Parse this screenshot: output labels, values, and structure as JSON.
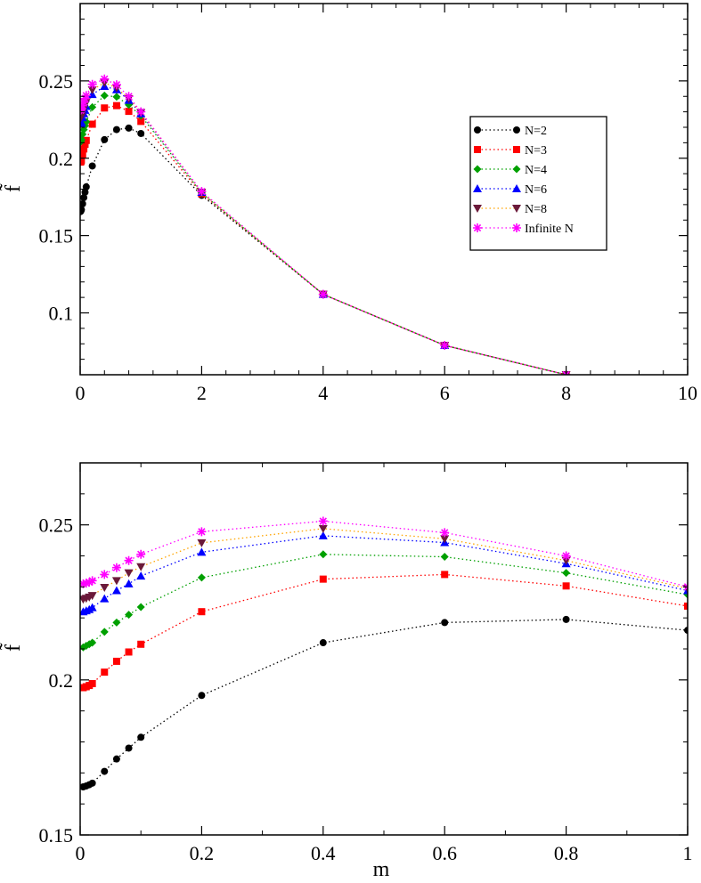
{
  "colors": {
    "N=2": "#000000",
    "N=3": "#ff0000",
    "N=4": "#00a000",
    "N=6": "#0000ff",
    "N=8": "#6b1a3a",
    "Infinite N": "#ff00ff",
    "N=8_line": "#ffa500"
  },
  "chart_data": [
    {
      "type": "line",
      "name": "top-panel",
      "title": "",
      "xlabel": "",
      "ylabel": "f̃",
      "xlim": [
        0,
        10
      ],
      "ylim": [
        0.06,
        0.3
      ],
      "xticks": [
        0,
        2,
        4,
        6,
        8,
        10
      ],
      "xtick_labels": [
        "0",
        "2",
        "4",
        "6",
        "8",
        "10"
      ],
      "yticks": [
        0.1,
        0.15,
        0.2,
        0.25
      ],
      "ytick_labels": [
        "0.1",
        "0.15",
        "0.2",
        "0.25"
      ],
      "legend": {
        "placement": "upper-right",
        "entries": [
          "N=2",
          "N=3",
          "N=4",
          "N=6",
          "N=8",
          "Infinite N"
        ]
      },
      "series": [
        {
          "name": "N=2",
          "marker": "circle",
          "x": [
            0.005,
            0.01,
            0.015,
            0.02,
            0.04,
            0.06,
            0.08,
            0.1,
            0.2,
            0.4,
            0.6,
            0.8,
            1,
            2,
            4,
            6,
            8
          ],
          "y": [
            0.1655,
            0.1658,
            0.1662,
            0.1667,
            0.1705,
            0.1745,
            0.178,
            0.1815,
            0.195,
            0.212,
            0.2185,
            0.2195,
            0.216,
            0.176,
            0.112,
            0.079,
            0.06
          ]
        },
        {
          "name": "N=3",
          "marker": "square",
          "x": [
            0.005,
            0.01,
            0.015,
            0.02,
            0.04,
            0.06,
            0.08,
            0.1,
            0.2,
            0.4,
            0.6,
            0.8,
            1,
            2,
            4,
            6,
            8
          ],
          "y": [
            0.1975,
            0.1978,
            0.1982,
            0.1988,
            0.2025,
            0.206,
            0.209,
            0.2115,
            0.222,
            0.2325,
            0.234,
            0.2303,
            0.2238,
            0.177,
            0.112,
            0.079,
            0.06
          ]
        },
        {
          "name": "N=4",
          "marker": "diamond",
          "x": [
            0.005,
            0.01,
            0.015,
            0.02,
            0.04,
            0.06,
            0.08,
            0.1,
            0.2,
            0.4,
            0.6,
            0.8,
            1,
            2,
            4,
            6,
            8
          ],
          "y": [
            0.2105,
            0.211,
            0.2115,
            0.212,
            0.2155,
            0.2185,
            0.221,
            0.2235,
            0.233,
            0.2405,
            0.2397,
            0.2345,
            0.2275,
            0.1775,
            0.112,
            0.079,
            0.06
          ]
        },
        {
          "name": "N=6",
          "marker": "triangle-up",
          "x": [
            0.005,
            0.01,
            0.015,
            0.02,
            0.04,
            0.06,
            0.08,
            0.1,
            0.2,
            0.4,
            0.6,
            0.8,
            1,
            2,
            4,
            6,
            8
          ],
          "y": [
            0.222,
            0.2223,
            0.2227,
            0.2233,
            0.2262,
            0.2288,
            0.231,
            0.2335,
            0.2412,
            0.2465,
            0.2443,
            0.2375,
            0.2288,
            0.178,
            0.112,
            0.079,
            0.06
          ]
        },
        {
          "name": "N=8",
          "marker": "triangle-down",
          "x": [
            0.005,
            0.01,
            0.015,
            0.02,
            0.04,
            0.06,
            0.08,
            0.1,
            0.2,
            0.4,
            0.6,
            0.8,
            1,
            2,
            4,
            6,
            8
          ],
          "y": [
            0.226,
            0.2263,
            0.2267,
            0.2272,
            0.2298,
            0.232,
            0.2345,
            0.2365,
            0.2442,
            0.2488,
            0.2455,
            0.2385,
            0.2295,
            0.178,
            0.112,
            0.079,
            0.06
          ]
        },
        {
          "name": "Infinite N",
          "marker": "asterisk",
          "x": [
            0.005,
            0.01,
            0.015,
            0.02,
            0.04,
            0.06,
            0.08,
            0.1,
            0.2,
            0.4,
            0.6,
            0.8,
            1,
            2,
            4,
            6,
            8
          ],
          "y": [
            0.231,
            0.2312,
            0.2315,
            0.232,
            0.234,
            0.2362,
            0.2385,
            0.2405,
            0.2478,
            0.2512,
            0.2475,
            0.24,
            0.23,
            0.1785,
            0.112,
            0.079,
            0.06
          ]
        }
      ]
    },
    {
      "type": "line",
      "name": "bottom-panel",
      "title": "",
      "xlabel": "m",
      "ylabel": "f̃",
      "xlim": [
        0,
        1
      ],
      "ylim": [
        0.15,
        0.27
      ],
      "xticks": [
        0,
        0.2,
        0.4,
        0.6,
        0.8,
        1
      ],
      "xtick_labels": [
        "0",
        "0.2",
        "0.4",
        "0.6",
        "0.8",
        "1"
      ],
      "yticks": [
        0.15,
        0.2,
        0.25
      ],
      "ytick_labels": [
        "0.15",
        "0.2",
        "0.25"
      ],
      "series": [
        {
          "name": "N=2",
          "marker": "circle",
          "x": [
            0.005,
            0.01,
            0.015,
            0.02,
            0.04,
            0.06,
            0.08,
            0.1,
            0.2,
            0.4,
            0.6,
            0.8,
            1
          ],
          "y": [
            0.1655,
            0.1658,
            0.1662,
            0.1667,
            0.1705,
            0.1745,
            0.178,
            0.1815,
            0.195,
            0.212,
            0.2185,
            0.2195,
            0.216
          ]
        },
        {
          "name": "N=3",
          "marker": "square",
          "x": [
            0.005,
            0.01,
            0.015,
            0.02,
            0.04,
            0.06,
            0.08,
            0.1,
            0.2,
            0.4,
            0.6,
            0.8,
            1
          ],
          "y": [
            0.1975,
            0.1978,
            0.1982,
            0.1988,
            0.2025,
            0.206,
            0.209,
            0.2115,
            0.222,
            0.2325,
            0.234,
            0.2303,
            0.2238
          ]
        },
        {
          "name": "N=4",
          "marker": "diamond",
          "x": [
            0.005,
            0.01,
            0.015,
            0.02,
            0.04,
            0.06,
            0.08,
            0.1,
            0.2,
            0.4,
            0.6,
            0.8,
            1
          ],
          "y": [
            0.2105,
            0.211,
            0.2115,
            0.212,
            0.2155,
            0.2185,
            0.221,
            0.2235,
            0.233,
            0.2405,
            0.2397,
            0.2345,
            0.2275
          ]
        },
        {
          "name": "N=6",
          "marker": "triangle-up",
          "x": [
            0.005,
            0.01,
            0.015,
            0.02,
            0.04,
            0.06,
            0.08,
            0.1,
            0.2,
            0.4,
            0.6,
            0.8,
            1
          ],
          "y": [
            0.222,
            0.2223,
            0.2227,
            0.2233,
            0.2262,
            0.2288,
            0.231,
            0.2335,
            0.2412,
            0.2465,
            0.2443,
            0.2375,
            0.2288
          ]
        },
        {
          "name": "N=8",
          "marker": "triangle-down",
          "x": [
            0.005,
            0.01,
            0.015,
            0.02,
            0.04,
            0.06,
            0.08,
            0.1,
            0.2,
            0.4,
            0.6,
            0.8,
            1
          ],
          "y": [
            0.226,
            0.2263,
            0.2267,
            0.2272,
            0.2298,
            0.232,
            0.2345,
            0.2365,
            0.2442,
            0.2488,
            0.2455,
            0.2385,
            0.2295
          ]
        },
        {
          "name": "Infinite N",
          "marker": "asterisk",
          "x": [
            0.005,
            0.01,
            0.015,
            0.02,
            0.04,
            0.06,
            0.08,
            0.1,
            0.2,
            0.4,
            0.6,
            0.8,
            1
          ],
          "y": [
            0.231,
            0.2312,
            0.2315,
            0.232,
            0.234,
            0.2362,
            0.2385,
            0.2405,
            0.2478,
            0.2512,
            0.2475,
            0.24,
            0.23
          ]
        }
      ]
    }
  ]
}
